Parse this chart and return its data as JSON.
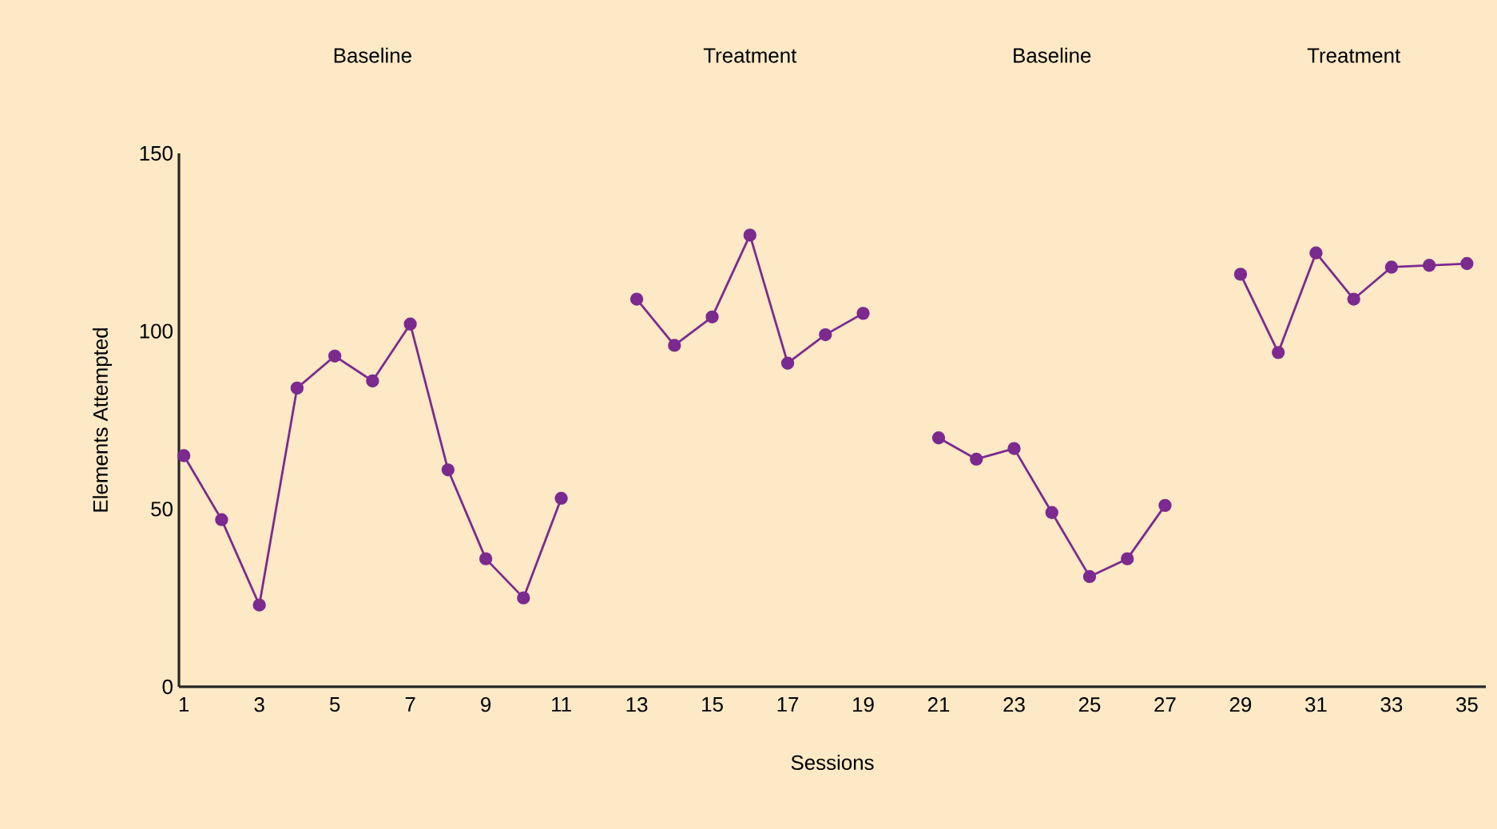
{
  "chart_data": {
    "type": "line",
    "xlabel": "Sessions",
    "ylabel": "Elements Attempted",
    "xlim": [
      0.87,
      35.5
    ],
    "ylim": [
      0,
      150
    ],
    "xticks": [
      1,
      3,
      5,
      7,
      9,
      11,
      13,
      15,
      17,
      19,
      21,
      23,
      25,
      27,
      29,
      31,
      33,
      35
    ],
    "yticks": [
      0,
      50,
      100,
      150
    ],
    "marker": "circle",
    "line_style": "solid",
    "grid": false,
    "series": [
      {
        "color": "#7b2a8f",
        "x": [
          1,
          2,
          3,
          4,
          5,
          6,
          7,
          8,
          9,
          10,
          11
        ],
        "values": [
          65,
          47,
          23,
          84,
          93,
          86,
          102,
          61,
          36,
          25,
          53
        ]
      },
      {
        "color": "#7b2a8f",
        "x": [
          13,
          14,
          15,
          16,
          17,
          18,
          19
        ],
        "values": [
          109,
          96,
          104,
          127,
          91,
          99,
          105
        ]
      },
      {
        "color": "#7b2a8f",
        "x": [
          21,
          22,
          23,
          24,
          25,
          26,
          27
        ],
        "values": [
          70,
          64,
          67,
          49,
          31,
          36,
          51
        ]
      },
      {
        "color": "#7b2a8f",
        "x": [
          29,
          30,
          31,
          32,
          33,
          34,
          35
        ],
        "values": [
          116,
          94,
          122,
          109,
          118,
          118.5,
          119
        ]
      }
    ],
    "annotations": [
      "Baseline",
      "Treatment",
      "Baseline",
      "Treatment"
    ]
  }
}
